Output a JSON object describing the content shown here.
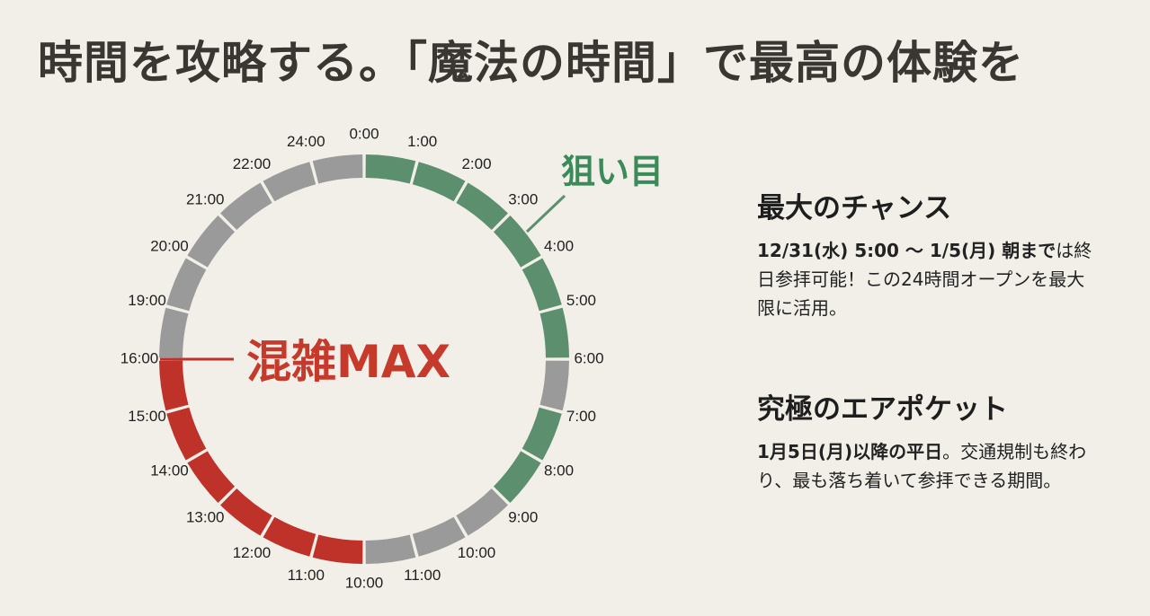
{
  "title": "時間を攻略する。「魔法の時間」で最高の体験を",
  "chart_data": {
    "type": "radial-timeline",
    "segments": [
      {
        "label": "0:00",
        "status": "target"
      },
      {
        "label": "1:00",
        "status": "target"
      },
      {
        "label": "2:00",
        "status": "target"
      },
      {
        "label": "3:00",
        "status": "target"
      },
      {
        "label": "4:00",
        "status": "target"
      },
      {
        "label": "5:00",
        "status": "target"
      },
      {
        "label": "6:00",
        "status": "normal"
      },
      {
        "label": "7:00",
        "status": "target"
      },
      {
        "label": "8:00",
        "status": "target"
      },
      {
        "label": "9:00",
        "status": "normal"
      },
      {
        "label": "10:00",
        "status": "normal"
      },
      {
        "label": "11:00",
        "status": "normal"
      },
      {
        "label": "10:00",
        "status": "crowded"
      },
      {
        "label": "11:00",
        "status": "crowded"
      },
      {
        "label": "12:00",
        "status": "crowded"
      },
      {
        "label": "13:00",
        "status": "crowded"
      },
      {
        "label": "14:00",
        "status": "crowded"
      },
      {
        "label": "15:00",
        "status": "crowded"
      },
      {
        "label": "16:00",
        "status": "normal"
      },
      {
        "label": "19:00",
        "status": "normal"
      },
      {
        "label": "20:00",
        "status": "normal"
      },
      {
        "label": "21:00",
        "status": "normal"
      },
      {
        "label": "22:00",
        "status": "normal"
      },
      {
        "label": "24:00",
        "status": "normal"
      }
    ],
    "colors": {
      "target": "#5b8f6d",
      "normal": "#9a9a9a",
      "crowded": "#be3229"
    },
    "callouts": {
      "target": "狙い目",
      "crowded": "混雑MAX"
    }
  },
  "sections": [
    {
      "heading": "最大のチャンス",
      "bold_text": "12/31(水) 5:00 ～ 1/5(月) 朝まで",
      "text": "は終日参拝可能！この24時間オープンを最大限に活用。"
    },
    {
      "heading": "究極のエアポケット",
      "bold_text": "1月5日(月)以降の平日",
      "text": "。交通規制も終わり、最も落ち着いて参拝できる期間。"
    }
  ]
}
